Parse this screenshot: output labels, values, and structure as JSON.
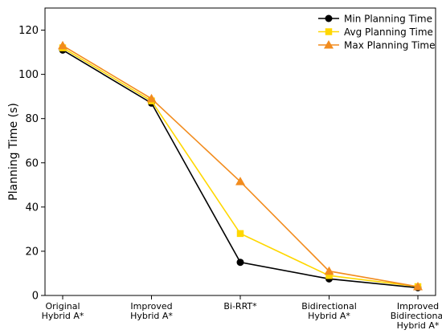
{
  "chart_data": {
    "type": "line",
    "categories": [
      [
        "Original",
        "Hybrid A*"
      ],
      [
        "Improved",
        "Hybrid A*"
      ],
      [
        "Bi-RRT*"
      ],
      [
        "Bidirectional",
        "Hybrid A*"
      ],
      [
        "Improved",
        "Bidirectional",
        "Hybrid A*"
      ]
    ],
    "ylabel": "Planning Time (s)",
    "xlabel": "",
    "ylim": [
      0,
      130
    ],
    "yticks": [
      0,
      20,
      40,
      60,
      80,
      100,
      120
    ],
    "grid": false,
    "legend_position": "top-right",
    "series": [
      {
        "name": "Min Planning Time",
        "values": [
          111,
          87,
          15,
          7.5,
          3.5
        ],
        "color": "#000000",
        "marker": "circle"
      },
      {
        "name": "Avg Planning Time",
        "values": [
          112,
          88,
          28,
          9,
          4
        ],
        "color": "#FFD700",
        "marker": "square"
      },
      {
        "name": "Max Planning Time",
        "values": [
          113,
          89,
          51.5,
          11,
          4
        ],
        "color": "#F28C1E",
        "marker": "triangle"
      }
    ]
  }
}
